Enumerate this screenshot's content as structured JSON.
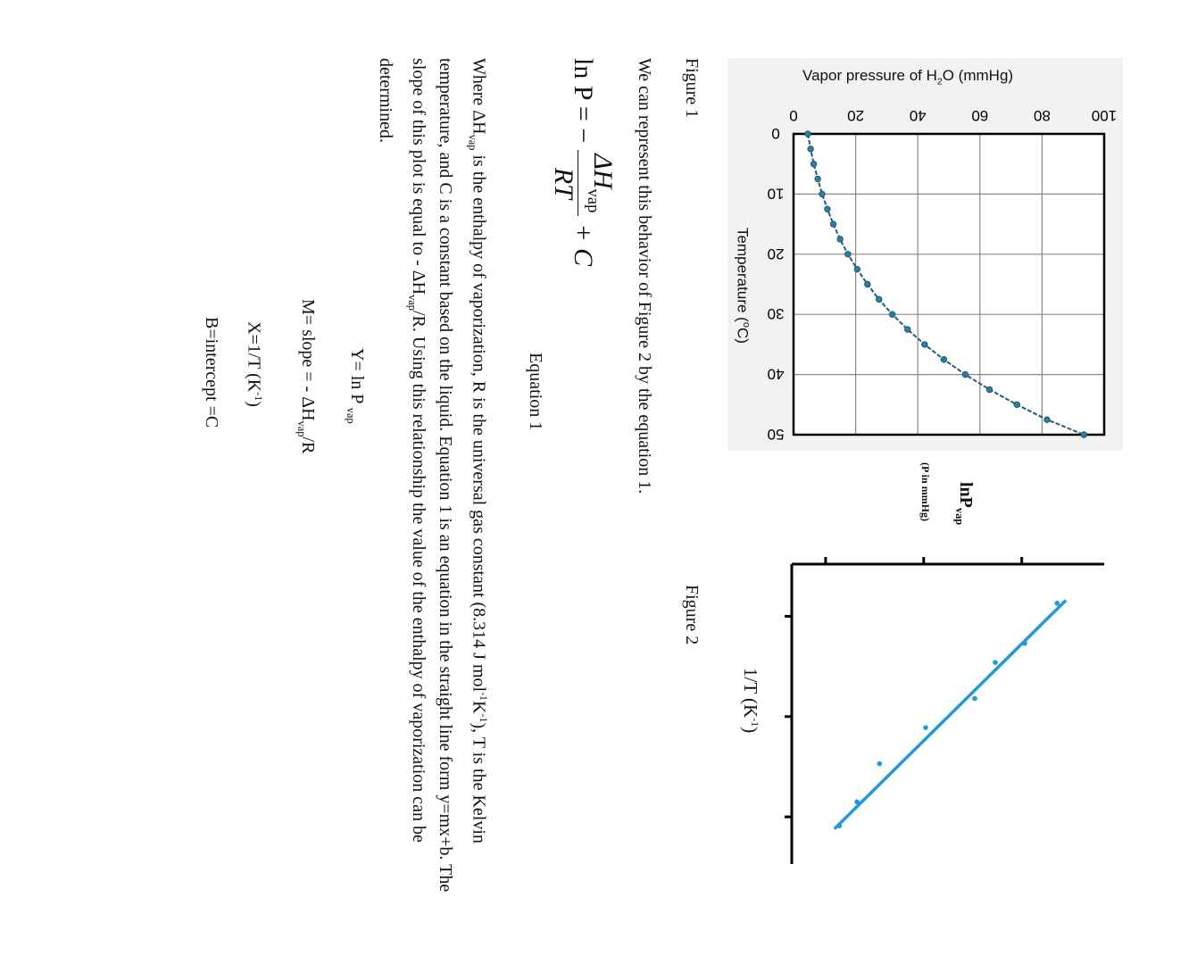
{
  "figure1": {
    "caption": "Figure 1",
    "background_color": "#f2f2f2",
    "chart_data": {
      "type": "line",
      "ylabel_main": "Vapor pressure of H",
      "ylabel_sub": "2",
      "ylabel_tail": "O  (mmHg)",
      "xlabel": "Temperature  (",
      "xlabel_sup": "o",
      "xlabel_tail": "C)",
      "xlim": [
        0,
        50
      ],
      "ylim": [
        0,
        100
      ],
      "xticks": [
        "0",
        "10",
        "20",
        "30",
        "40",
        "50"
      ],
      "yticks": [
        "0",
        "20",
        "40",
        "60",
        "80",
        "100"
      ],
      "grid": true,
      "color": "#2a7fa8",
      "x": [
        0,
        2.5,
        5,
        7.5,
        10,
        12.5,
        15,
        17.5,
        20,
        22.5,
        25,
        27.5,
        30,
        32.5,
        35,
        37.5,
        40,
        42.5,
        45,
        47.5,
        50
      ],
      "y": [
        4.6,
        5.5,
        6.5,
        7.8,
        9.2,
        10.9,
        12.8,
        15.0,
        17.5,
        20.5,
        23.8,
        27.5,
        31.8,
        36.7,
        42.2,
        48.4,
        55.3,
        63.1,
        71.9,
        81.6,
        93.5
      ]
    }
  },
  "figure2": {
    "caption": "Figure 2",
    "chart_data": {
      "type": "scatter",
      "ylabel": "lnP",
      "ylabel_sub": "vap",
      "ylabel_note": "(P in mmHg)",
      "xlabel": "1/T (K",
      "xlabel_sup": "-1",
      "xlabel_tail": ")",
      "xlim": [
        0.48,
        3.47
      ],
      "ylim": [
        0.655,
        3.84
      ],
      "xticks": [
        1,
        2,
        3
      ],
      "yticks": [
        1,
        2,
        3
      ],
      "color": "#1e9bd7",
      "points_x": [
        0.87,
        1.27,
        1.46,
        1.82,
        2.11,
        2.47,
        2.85,
        3.09
      ],
      "points_y": [
        3.36,
        3.03,
        2.73,
        2.52,
        2.02,
        1.55,
        1.32,
        1.14
      ],
      "fit_line": {
        "x": [
          0.84,
          3.12
        ],
        "y": [
          3.45,
          1.09
        ]
      }
    }
  },
  "text": {
    "intro": "We can represent this behavior of Figure 2 by the equation 1.",
    "eq_lhs": "ln P = −",
    "eq_num": "ΔH",
    "eq_num_sub": "vap",
    "eq_den": "RT",
    "eq_rhs": "+ C",
    "eq_label": "Equation 1",
    "para_1": "Where ΔH",
    "para_sub1": "vap",
    "para_2": " is the enthalpy of vaporization, R is the universal gas constant (8.314 J mol",
    "para_sup1": "-1",
    "para_3": "K",
    "para_sup2": "-1",
    "para_4": "), T is the Kelvin temperature, and C is a constant based on the liquid. Equation 1 is an equation in the straight line form y=mx+b. The slope of this plot is equal to - ΔH",
    "para_sub2": "vap",
    "para_5": "/R. Using this relationship the value of the enthalpy of vaporization can be determined.",
    "y_def": "Y= ln P ",
    "y_def_sub": "vap",
    "m_def": "M= slope = - ΔH",
    "m_def_sub": "vap",
    "m_def_tail": "/R",
    "x_def": "X=1/T  (K",
    "x_def_sup": "-1",
    "x_def_tail": ")",
    "b_def": "B=intercept =C"
  }
}
